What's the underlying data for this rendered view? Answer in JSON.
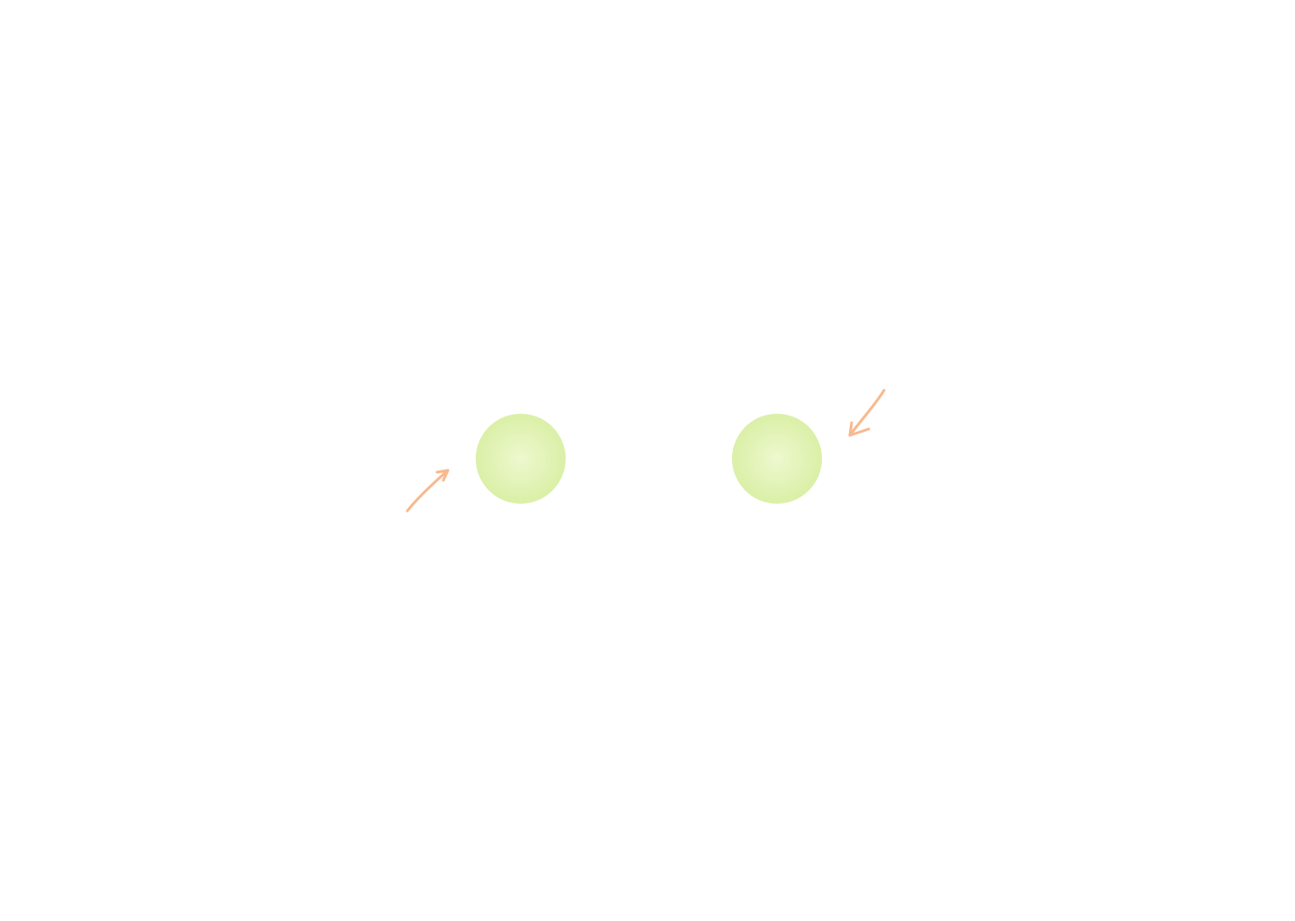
{
  "scene": {
    "background_color": "#ffffff",
    "ball_color_center": "#eef8cf",
    "ball_color_edge": "#d2ec96",
    "arrow_color": "#f8b98e",
    "items": [
      {
        "kind": "ball",
        "name": "left-ball"
      },
      {
        "kind": "arrow",
        "name": "left-arrow",
        "direction": "up-right"
      },
      {
        "kind": "ball",
        "name": "right-ball"
      },
      {
        "kind": "arrow",
        "name": "right-arrow",
        "direction": "down-left"
      }
    ]
  }
}
